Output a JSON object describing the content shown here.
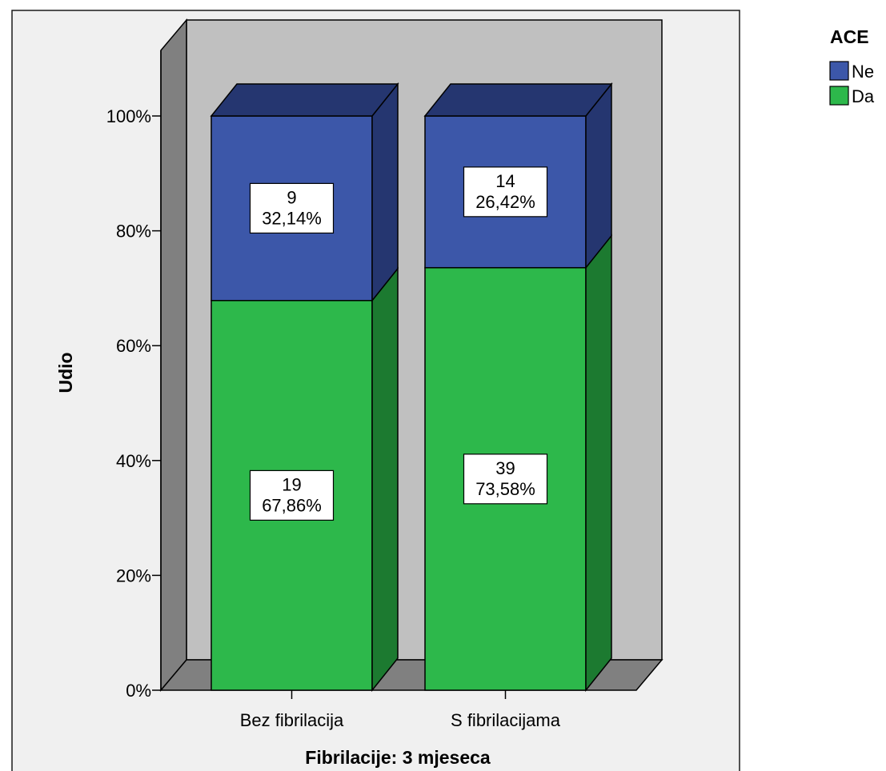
{
  "chart_data": {
    "type": "bar",
    "stacked": true,
    "percent": true,
    "three_d": true,
    "xlabel": "Fibrilacije: 3 mjeseca",
    "ylabel": "Udio",
    "categories": [
      "Bez fibrilacija",
      "S fibrilacijama"
    ],
    "yticks": [
      "0%",
      "20%",
      "40%",
      "60%",
      "80%",
      "100%"
    ],
    "ylim": [
      0,
      100
    ],
    "legend": {
      "title": "ACE",
      "position": "top-right"
    },
    "series": [
      {
        "name": "Da",
        "color": "#2db84b",
        "side_color": "#1c7a30",
        "values": [
          67.86,
          73.58
        ],
        "counts": [
          19,
          39
        ],
        "count_labels": [
          "19",
          "39"
        ],
        "pct_labels": [
          "67,86%",
          "73,58%"
        ]
      },
      {
        "name": "Ne",
        "color": "#3c57a9",
        "side_color": "#253670",
        "values": [
          32.14,
          26.42
        ],
        "counts": [
          9,
          14
        ],
        "count_labels": [
          "9",
          "14"
        ],
        "pct_labels": [
          "32,14%",
          "26,42%"
        ]
      }
    ],
    "legend_order": [
      "Ne",
      "Da"
    ],
    "colors": {
      "back_wall": "#c0c0c0",
      "side_wall": "#808080",
      "floor": "#808080",
      "outer_background": "#f0f0f0",
      "label_box": "#ffffff"
    }
  }
}
